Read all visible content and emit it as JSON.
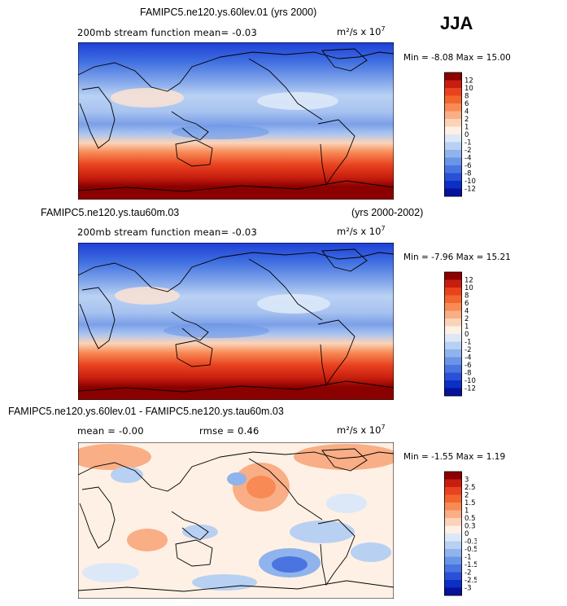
{
  "season": "JJA",
  "chart_data": [
    {
      "type": "heatmap",
      "title": "FAMIPC5.ne120.ys.60lev.01 (yrs 2000)",
      "subtitle": "200mb stream function   mean=  -0.03",
      "units": "m²/s x 10",
      "units_exp": "7",
      "min_max": "Min =  -8.08  Max =   15.00",
      "colorbar_levels": [
        "12",
        "10",
        "8",
        "6",
        "4",
        "2",
        "1",
        "0",
        "-1",
        "-2",
        "-4",
        "-6",
        "-8",
        "-10",
        "-12"
      ],
      "colorbar_colors": [
        "#8b0000",
        "#c81e0f",
        "#e8421f",
        "#f2652e",
        "#f78a55",
        "#f9ae86",
        "#fbd3b8",
        "#fef0e4",
        "#dce8f8",
        "#b8d0f2",
        "#8fb3ec",
        "#6a94e6",
        "#4a74e0",
        "#2a50d8",
        "#0c2fc6",
        "#06129a"
      ],
      "field": "annular-gradient-south-high"
    },
    {
      "type": "heatmap",
      "title": "FAMIPC5.ne120.ys.tau60m.03",
      "period": "(yrs 2000-2002)",
      "subtitle": "200mb stream function   mean=  -0.03",
      "units": "m²/s x 10",
      "units_exp": "7",
      "min_max": "Min =  -7.96  Max =   15.21",
      "colorbar_levels": [
        "12",
        "10",
        "8",
        "6",
        "4",
        "2",
        "1",
        "0",
        "-1",
        "-2",
        "-4",
        "-6",
        "-8",
        "-10",
        "-12"
      ],
      "colorbar_colors": [
        "#8b0000",
        "#c81e0f",
        "#e8421f",
        "#f2652e",
        "#f78a55",
        "#f9ae86",
        "#fbd3b8",
        "#fef0e4",
        "#dce8f8",
        "#b8d0f2",
        "#8fb3ec",
        "#6a94e6",
        "#4a74e0",
        "#2a50d8",
        "#0c2fc6",
        "#06129a"
      ],
      "field": "annular-gradient-south-high"
    },
    {
      "type": "heatmap",
      "title": "FAMIPC5.ne120.ys.60lev.01 - FAMIPC5.ne120.ys.tau60m.03",
      "subtitle_mean": "mean =  -0.00",
      "subtitle_rmse": "rmse =   0.46",
      "units": "m²/s x 10",
      "units_exp": "7",
      "min_max": "Min =  -1.55  Max =    1.19",
      "colorbar_levels": [
        "3",
        "2.5",
        "2",
        "1.5",
        "1",
        "0.5",
        "0.3",
        "0",
        "-0.3",
        "-0.5",
        "-1",
        "-1.5",
        "-2",
        "-2.5",
        "-3"
      ],
      "colorbar_colors": [
        "#8b0000",
        "#c81e0f",
        "#e8421f",
        "#f2652e",
        "#f78a55",
        "#f9ae86",
        "#fbd3b8",
        "#fef0e4",
        "#dce8f8",
        "#b8d0f2",
        "#8fb3ec",
        "#6a94e6",
        "#4a74e0",
        "#2a50d8",
        "#0c2fc6",
        "#06129a"
      ],
      "field": "difference-blobs"
    }
  ]
}
